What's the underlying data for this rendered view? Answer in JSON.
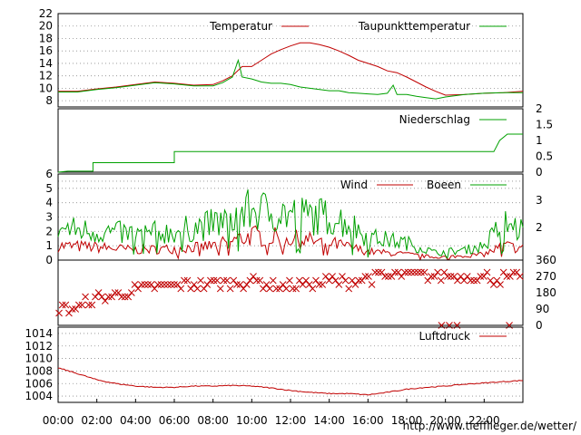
{
  "colors": {
    "red": "#c00000",
    "green": "#00a000",
    "frame": "#000000",
    "grid": "#8c8c8c",
    "credit": "#e00000"
  },
  "x_ticks": [
    "00:00",
    "02:00",
    "04:00",
    "06:00",
    "08:00",
    "10:00",
    "12:00",
    "14:00",
    "16:00",
    "18:00",
    "20:00",
    "22:00"
  ],
  "credit": "http://www.tiefflieger.de/wetter/",
  "chart_data": [
    {
      "type": "line",
      "x_unit": "hour of day",
      "xlim": [
        0,
        24
      ],
      "ylim": [
        7,
        22
      ],
      "y_ticks": [
        8,
        10,
        12,
        14,
        16,
        18,
        20,
        22
      ],
      "y_axis": "left",
      "grid": true,
      "legend": "top",
      "series": [
        {
          "name": "Temperatur",
          "color": "#c00000",
          "points": [
            [
              0,
              9.5
            ],
            [
              1,
              9.5
            ],
            [
              2,
              9.9
            ],
            [
              3,
              10.2
            ],
            [
              4,
              10.6
            ],
            [
              5,
              11.0
            ],
            [
              6,
              10.8
            ],
            [
              7,
              10.5
            ],
            [
              8,
              10.6
            ],
            [
              8.5,
              11.2
            ],
            [
              9,
              12.0
            ],
            [
              9.5,
              13.5
            ],
            [
              10,
              13.5
            ],
            [
              10.5,
              14.5
            ],
            [
              11,
              15.5
            ],
            [
              11.5,
              16.2
            ],
            [
              12,
              16.8
            ],
            [
              12.5,
              17.3
            ],
            [
              13,
              17.3
            ],
            [
              13.5,
              17.0
            ],
            [
              14,
              16.6
            ],
            [
              14.5,
              16.0
            ],
            [
              15,
              15.3
            ],
            [
              15.5,
              14.5
            ],
            [
              16,
              14.0
            ],
            [
              16.5,
              13.5
            ],
            [
              17,
              12.8
            ],
            [
              17.5,
              12.5
            ],
            [
              18,
              11.8
            ],
            [
              18.5,
              11.0
            ],
            [
              19,
              10.2
            ],
            [
              19.5,
              9.5
            ],
            [
              20,
              8.9
            ],
            [
              21,
              9.0
            ],
            [
              22,
              9.2
            ],
            [
              23,
              9.3
            ],
            [
              24,
              9.5
            ]
          ]
        },
        {
          "name": "Taupunkttemperatur",
          "color": "#00a000",
          "points": [
            [
              0,
              9.4
            ],
            [
              1,
              9.4
            ],
            [
              2,
              9.8
            ],
            [
              3,
              10.1
            ],
            [
              4,
              10.5
            ],
            [
              5,
              10.9
            ],
            [
              6,
              10.7
            ],
            [
              7,
              10.4
            ],
            [
              8,
              10.4
            ],
            [
              8.5,
              10.9
            ],
            [
              9,
              11.8
            ],
            [
              9.3,
              14.5
            ],
            [
              9.5,
              11.8
            ],
            [
              10,
              11.5
            ],
            [
              10.5,
              11.0
            ],
            [
              11,
              10.8
            ],
            [
              11.5,
              10.8
            ],
            [
              12,
              10.6
            ],
            [
              12.5,
              10.2
            ],
            [
              13,
              10.0
            ],
            [
              13.5,
              9.8
            ],
            [
              14,
              9.6
            ],
            [
              14.5,
              9.6
            ],
            [
              15,
              9.3
            ],
            [
              15.5,
              9.2
            ],
            [
              16,
              9.1
            ],
            [
              16.5,
              9.0
            ],
            [
              17,
              9.2
            ],
            [
              17.3,
              10.5
            ],
            [
              17.5,
              9.0
            ],
            [
              18,
              9.0
            ],
            [
              18.5,
              8.7
            ],
            [
              19,
              8.5
            ],
            [
              19.5,
              8.3
            ],
            [
              20,
              8.6
            ],
            [
              21,
              9.0
            ],
            [
              22,
              9.2
            ],
            [
              23,
              9.3
            ],
            [
              24,
              9.3
            ]
          ]
        }
      ]
    },
    {
      "type": "line",
      "x_unit": "hour of day",
      "xlim": [
        0,
        24
      ],
      "ylim": [
        0,
        2
      ],
      "y_ticks": [
        "2",
        "1.5",
        "1",
        "0.5",
        "0"
      ],
      "y_axis": "right",
      "legend": "top-right",
      "series": [
        {
          "name": "Niederschlag",
          "color": "#00a000",
          "points": [
            [
              0,
              0
            ],
            [
              0.5,
              0.03
            ],
            [
              1.8,
              0.03
            ],
            [
              1.8,
              0.3
            ],
            [
              6,
              0.3
            ],
            [
              6,
              0.65
            ],
            [
              22.5,
              0.65
            ],
            [
              22.8,
              1.0
            ],
            [
              23.2,
              1.2
            ],
            [
              24,
              1.2
            ]
          ]
        }
      ]
    },
    {
      "type": "line",
      "x_unit": "hour of day",
      "xlim": [
        0,
        24
      ],
      "ylim": [
        0,
        6
      ],
      "y_ticks": [
        0,
        1,
        2,
        3,
        4,
        5,
        6
      ],
      "y2_ticks": [
        "2",
        "3"
      ],
      "grid": true,
      "legend": "top",
      "series": [
        {
          "name": "Wind",
          "color": "#c00000",
          "amplitude_profile": [
            [
              0,
              1.0
            ],
            [
              2,
              0.9
            ],
            [
              4,
              0.7
            ],
            [
              6,
              0.8
            ],
            [
              8,
              1.0
            ],
            [
              10,
              1.7
            ],
            [
              12,
              1.5
            ],
            [
              14,
              1.2
            ],
            [
              16,
              0.6
            ],
            [
              18,
              0.4
            ],
            [
              19.5,
              0.2
            ],
            [
              21,
              0.3
            ],
            [
              22,
              0.4
            ],
            [
              23,
              1.0
            ],
            [
              24,
              0.8
            ]
          ]
        },
        {
          "name": "Boeen",
          "color": "#00a000",
          "amplitude_profile": [
            [
              0,
              2.2
            ],
            [
              2,
              2.0
            ],
            [
              4,
              1.8
            ],
            [
              6,
              2.0
            ],
            [
              8,
              2.5
            ],
            [
              10,
              3.5
            ],
            [
              12,
              3.2
            ],
            [
              14,
              3.0
            ],
            [
              15,
              2.6
            ],
            [
              16,
              1.6
            ],
            [
              18,
              1.2
            ],
            [
              19.5,
              0.5
            ],
            [
              21,
              0.7
            ],
            [
              22,
              1.0
            ],
            [
              23,
              2.6
            ],
            [
              24,
              2.0
            ]
          ]
        }
      ]
    },
    {
      "type": "scatter",
      "x_unit": "hour of day",
      "xlim": [
        0,
        24
      ],
      "ylim": [
        0,
        360
      ],
      "y_ticks": [
        0,
        90,
        180,
        270,
        360
      ],
      "y_axis": "right",
      "marker": "x",
      "color": "#c00000",
      "direction_profile": [
        [
          0,
          100
        ],
        [
          1,
          100
        ],
        [
          2,
          150
        ],
        [
          3,
          170
        ],
        [
          4,
          190
        ],
        [
          5,
          210
        ],
        [
          6,
          220
        ],
        [
          7,
          230
        ],
        [
          8,
          225
        ],
        [
          9,
          230
        ],
        [
          10,
          240
        ],
        [
          11,
          230
        ],
        [
          12,
          210
        ],
        [
          13,
          230
        ],
        [
          14,
          250
        ],
        [
          15,
          240
        ],
        [
          16,
          260
        ],
        [
          17,
          270
        ],
        [
          18,
          275
        ],
        [
          19,
          270
        ],
        [
          20,
          275
        ],
        [
          21,
          270
        ],
        [
          22,
          265
        ],
        [
          23,
          260
        ],
        [
          24,
          260
        ]
      ],
      "calm_points": [
        [
          19.8,
          0
        ],
        [
          20.2,
          0
        ],
        [
          20.6,
          0
        ],
        [
          23.3,
          0
        ]
      ]
    },
    {
      "type": "line",
      "x_unit": "hour of day",
      "xlim": [
        0,
        24
      ],
      "ylim": [
        1003,
        1015
      ],
      "y_ticks": [
        1004,
        1006,
        1008,
        1010,
        1012,
        1014
      ],
      "y_axis": "left",
      "grid": true,
      "legend": "top",
      "series": [
        {
          "name": "Luftdruck",
          "color": "#c00000",
          "points": [
            [
              0,
              1008.5
            ],
            [
              1,
              1007.6
            ],
            [
              2,
              1006.6
            ],
            [
              3,
              1006.0
            ],
            [
              4,
              1005.6
            ],
            [
              5,
              1005.4
            ],
            [
              6,
              1005.4
            ],
            [
              7,
              1005.6
            ],
            [
              8,
              1005.6
            ],
            [
              9,
              1005.7
            ],
            [
              10,
              1005.6
            ],
            [
              11,
              1005.3
            ],
            [
              12,
              1004.9
            ],
            [
              13,
              1004.6
            ],
            [
              14,
              1004.4
            ],
            [
              15,
              1004.4
            ],
            [
              16,
              1004.2
            ],
            [
              17,
              1004.6
            ],
            [
              18,
              1005.1
            ],
            [
              19,
              1005.4
            ],
            [
              20,
              1005.6
            ],
            [
              21,
              1005.9
            ],
            [
              22,
              1006.1
            ],
            [
              23,
              1006.3
            ],
            [
              24,
              1006.5
            ]
          ]
        }
      ]
    }
  ]
}
